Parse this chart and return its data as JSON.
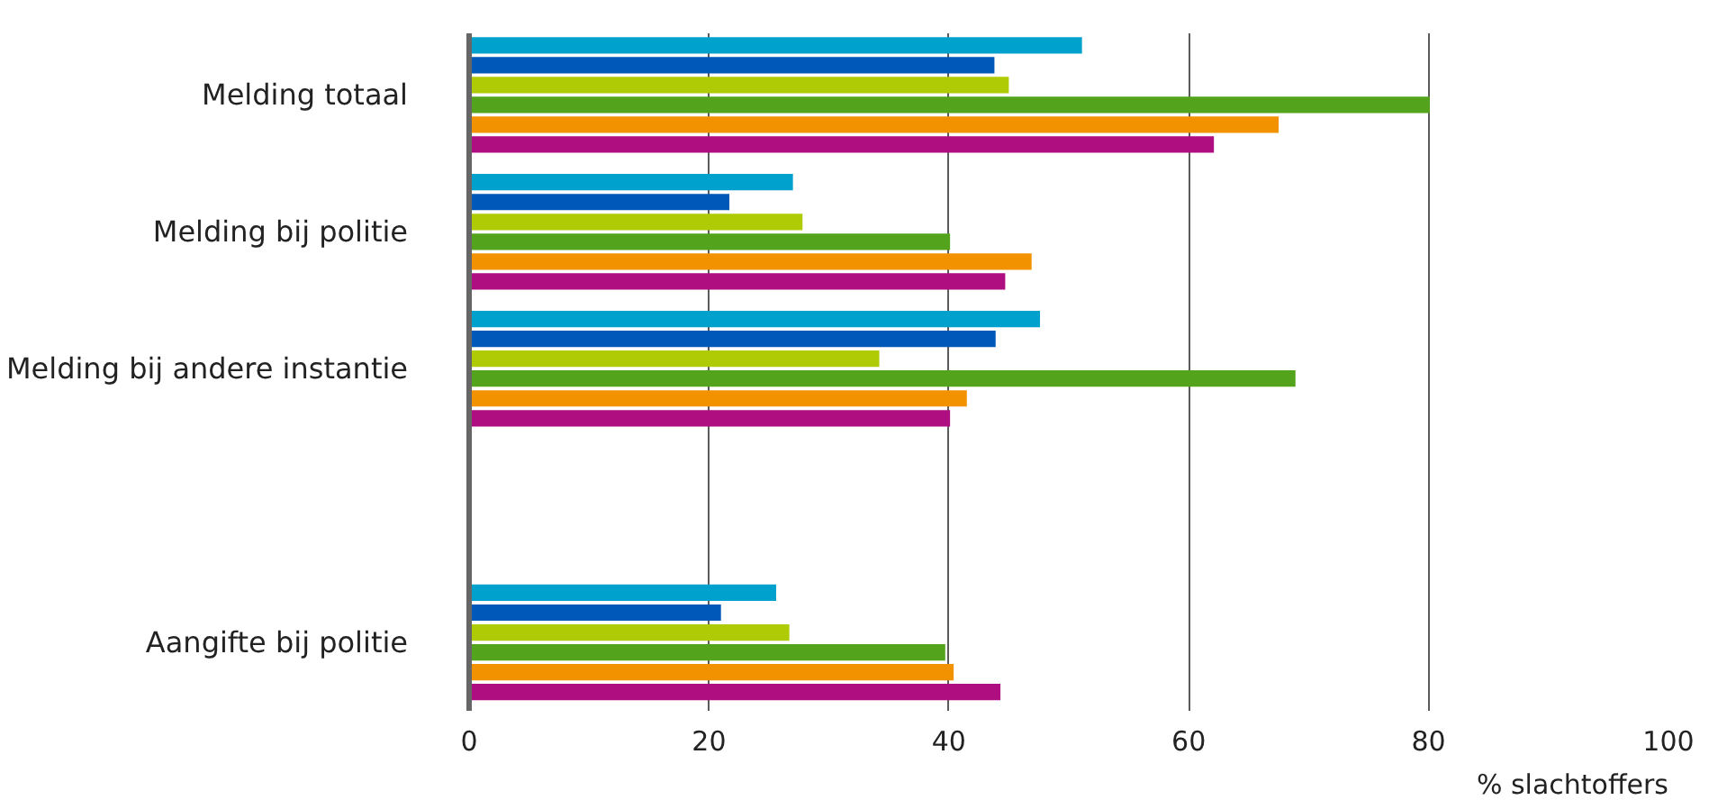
{
  "chart_data": {
    "type": "bar",
    "orientation": "horizontal",
    "xlabel": "% slachtoffers",
    "categories": [
      "Melding totaal",
      "Melding bij politie",
      "Melding bij andere instantie",
      null,
      "Aangifte bij politie"
    ],
    "series": [
      {
        "color": "#00a1cd",
        "values": [
          51.1,
          27.0,
          47.6,
          null,
          25.6
        ]
      },
      {
        "color": "#0058b8",
        "values": [
          43.8,
          21.7,
          43.9,
          null,
          21.0
        ]
      },
      {
        "color": "#afcb05",
        "values": [
          45.0,
          27.8,
          34.2,
          null,
          26.7
        ]
      },
      {
        "color": "#53a31d",
        "values": [
          80.1,
          40.1,
          68.9,
          null,
          39.7
        ]
      },
      {
        "color": "#f39200",
        "values": [
          67.5,
          46.9,
          41.5,
          null,
          40.4
        ]
      },
      {
        "color": "#af0e80",
        "values": [
          62.1,
          44.7,
          40.1,
          null,
          44.3
        ]
      }
    ],
    "xlim": [
      0,
      100
    ],
    "xticks": [
      0,
      20,
      40,
      60,
      80,
      100
    ],
    "grid": "x"
  }
}
